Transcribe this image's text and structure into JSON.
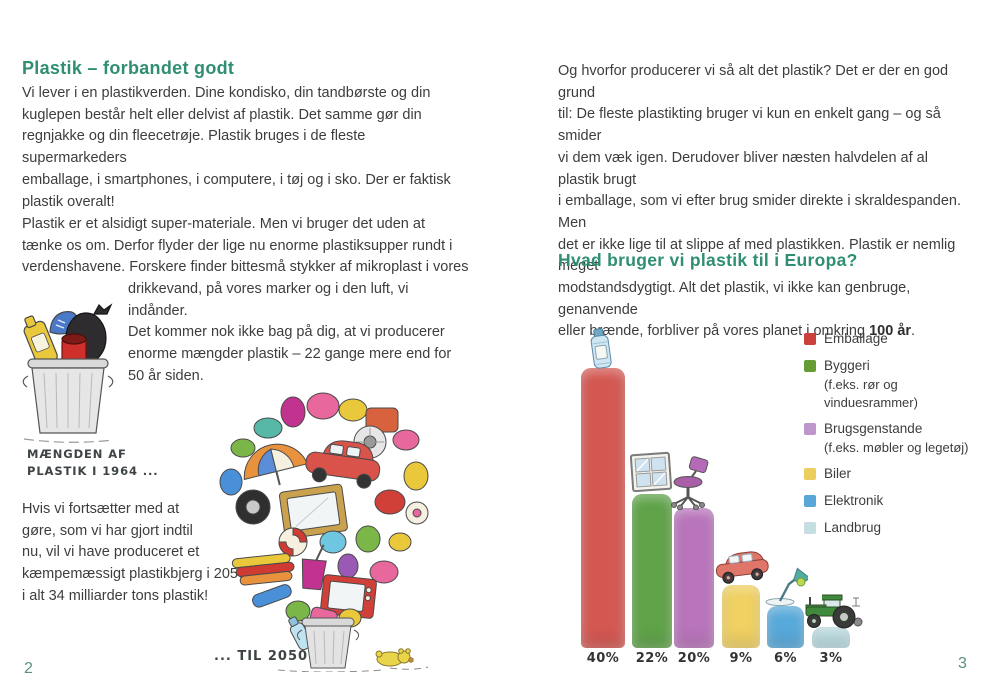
{
  "left_page": {
    "title": "Plastik – forbandet godt",
    "para1": [
      "Vi lever i en plastikverden. Dine kondisko, din tandbørste og din",
      "kuglepen består helt eller delvist af plastik. Det samme gør din",
      "regnjakke og din fleecetrøje. Plastik bruges i de fleste supermarkeders",
      "emballage, i smartphones, i computere, i tøj og i sko. Der er faktisk",
      "plastik overalt!"
    ],
    "para2a": [
      "Plastik er et alsidigt super-materiale. Men vi bruger det uden at",
      "tænke os om. Derfor flyder der lige nu enorme plastiksupper rundt i",
      "verdenshavene. Forskere finder bittesmå stykker af mikroplast i vores"
    ],
    "para2b": [
      "drikkevand, på vores marker og i den luft, vi indånder.",
      "Det kommer nok ikke bag på dig, at vi producerer",
      "enorme mængder plastik – 22 gange mere end for",
      "50 år siden."
    ],
    "caption_1964": [
      "MÆNGDEN AF",
      "PLASTIK I 1964 ..."
    ],
    "para3": [
      "Hvis vi fortsætter med at",
      "gøre, som vi har gjort indtil",
      "nu, vil vi have produceret et",
      "kæmpemæssigt plastikbjerg i 2050:",
      "i alt 34 milliarder tons plastik!"
    ],
    "caption_2050": "... TIL 2050",
    "page_number": "2"
  },
  "right_page": {
    "para_lines": [
      "Og hvorfor producerer vi så alt det plastik? Det er der en god grund",
      "til: De fleste plastikting bruger vi kun en enkelt gang – og så smider",
      "vi dem væk igen. Derudover bliver næsten halvdelen af al plastik brugt",
      "i emballage, som vi efter brug smider direkte i skraldespanden. Men",
      "det er ikke lige til at slippe af med plastikken. Plastik er nemlig meget",
      "modstandsdygtigt. Alt det plastik, vi ikke kan genbruge, genanvende"
    ],
    "para_last_line": {
      "pre": "eller brænde, forbliver på vores planet i omkring ",
      "bold": "100 år",
      "post": "."
    },
    "heading": "Hvad bruger vi plastik til i Europa?",
    "page_number": "3"
  },
  "chart_data": {
    "type": "bar",
    "title": "Hvad bruger vi plastik til i Europa?",
    "categories": [
      "Emballage",
      "Byggeri",
      "Brugsgenstande",
      "Biler",
      "Elektronik",
      "Landbrug"
    ],
    "values": [
      40,
      22,
      20,
      9,
      6,
      3
    ],
    "unit": "%",
    "ylim": [
      0,
      40
    ],
    "grid": false,
    "legend_position": "right",
    "legend": [
      {
        "label": "Emballage",
        "sub": ""
      },
      {
        "label": "Byggeri",
        "sub": "(f.eks. rør og vinduesrammer)"
      },
      {
        "label": "Brugsgenstande",
        "sub": "(f.eks. møbler og legetøj)"
      },
      {
        "label": "Biler",
        "sub": ""
      },
      {
        "label": "Elektronik",
        "sub": ""
      },
      {
        "label": "Landbrug",
        "sub": ""
      }
    ],
    "bar_colors": [
      "#d14b45",
      "#539c3b",
      "#b46ab6",
      "#f0ce57",
      "#4ba4d9",
      "#b5d9de"
    ],
    "legend_colors": [
      "#c9403d",
      "#679b35",
      "#bd96ca",
      "#ecce5e",
      "#57a7d8",
      "#c4dee2"
    ],
    "bar_icons": [
      "plastic-bottle",
      "window",
      "office-chair",
      "car",
      "desk-lamp",
      "tractor"
    ]
  },
  "colors": {
    "heading_green": "#2f8e73",
    "body_text": "#3d3d3d",
    "page_number": "#5b8f82"
  }
}
